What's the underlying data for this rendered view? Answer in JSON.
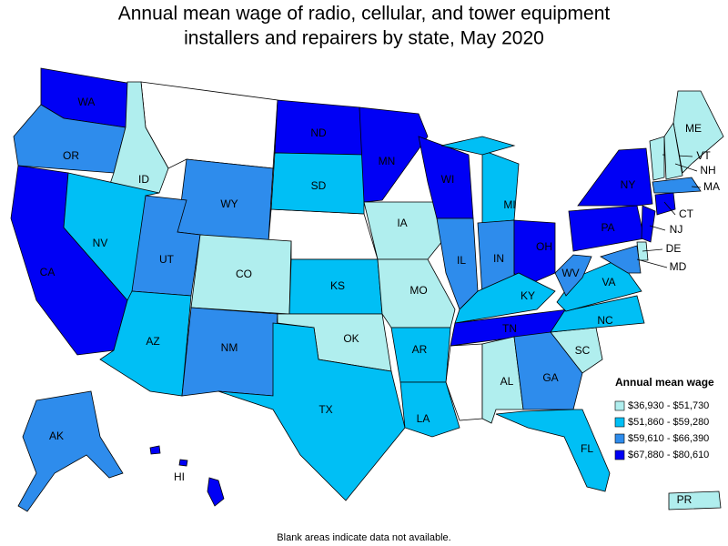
{
  "title": [
    "Annual mean wage of radio, cellular, and tower equipment",
    "installers and repairers by state, May 2020"
  ],
  "legend": {
    "title": "Annual mean wage",
    "items": [
      {
        "label": "$36,930 - $51,730",
        "color": "#b0eeee"
      },
      {
        "label": "$51,860 - $59,280",
        "color": "#00bff5"
      },
      {
        "label": "$59,610 - $66,390",
        "color": "#2e8cec"
      },
      {
        "label": "$67,880 - $80,610",
        "color": "#0000f5"
      }
    ]
  },
  "states": [
    {
      "label": "WA",
      "color": "#0000f5"
    },
    {
      "label": "OR",
      "color": "#2e8cec"
    },
    {
      "label": "CA",
      "color": "#0000f5"
    },
    {
      "label": "ID",
      "color": "#b0eeee"
    },
    {
      "label": "NV",
      "color": "#00bff5"
    },
    {
      "label": "WY",
      "color": "#2e8cec"
    },
    {
      "label": "UT",
      "color": "#2e8cec"
    },
    {
      "label": "AZ",
      "color": "#00bff5"
    },
    {
      "label": "CO",
      "color": "#b0eeee"
    },
    {
      "label": "NM",
      "color": "#2e8cec"
    },
    {
      "label": "ND",
      "color": "#0000f5"
    },
    {
      "label": "SD",
      "color": "#00bff5"
    },
    {
      "label": "KS",
      "color": "#00bff5"
    },
    {
      "label": "OK",
      "color": "#b0eeee"
    },
    {
      "label": "TX",
      "color": "#00bff5"
    },
    {
      "label": "MN",
      "color": "#0000f5"
    },
    {
      "label": "IA",
      "color": "#b0eeee"
    },
    {
      "label": "MO",
      "color": "#b0eeee"
    },
    {
      "label": "AR",
      "color": "#00bff5"
    },
    {
      "label": "LA",
      "color": "#00bff5"
    },
    {
      "label": "WI",
      "color": "#0000f5"
    },
    {
      "label": "IL",
      "color": "#2e8cec"
    },
    {
      "label": "MI",
      "color": "#00bff5"
    },
    {
      "label": "IN",
      "color": "#2e8cec"
    },
    {
      "label": "OH",
      "color": "#0000f5"
    },
    {
      "label": "KY",
      "color": "#00bff5"
    },
    {
      "label": "TN",
      "color": "#0000f5"
    },
    {
      "label": "AL",
      "color": "#b0eeee"
    },
    {
      "label": "GA",
      "color": "#2e8cec"
    },
    {
      "label": "FL",
      "color": "#00bff5"
    },
    {
      "label": "SC",
      "color": "#b0eeee"
    },
    {
      "label": "NC",
      "color": "#00bff5"
    },
    {
      "label": "VA",
      "color": "#00bff5"
    },
    {
      "label": "WV",
      "color": "#2e8cec"
    },
    {
      "label": "PA",
      "color": "#0000f5"
    },
    {
      "label": "NY",
      "color": "#0000f5"
    },
    {
      "label": "ME",
      "color": "#b0eeee"
    },
    {
      "label": "VT",
      "color": "#b0eeee"
    },
    {
      "label": "NH",
      "color": "#b0eeee"
    },
    {
      "label": "MA",
      "color": "#2e8cec"
    },
    {
      "label": "CT",
      "color": "#0000f5"
    },
    {
      "label": "NJ",
      "color": "#0000f5"
    },
    {
      "label": "DE",
      "color": "#b0eeee"
    },
    {
      "label": "MD",
      "color": "#2e8cec"
    },
    {
      "label": "AK",
      "color": "#2e8cec"
    },
    {
      "label": "HI",
      "color": "#0000f5"
    },
    {
      "label": "PR",
      "color": "#b0eeee"
    }
  ],
  "footnote": "Blank areas indicate data not available."
}
